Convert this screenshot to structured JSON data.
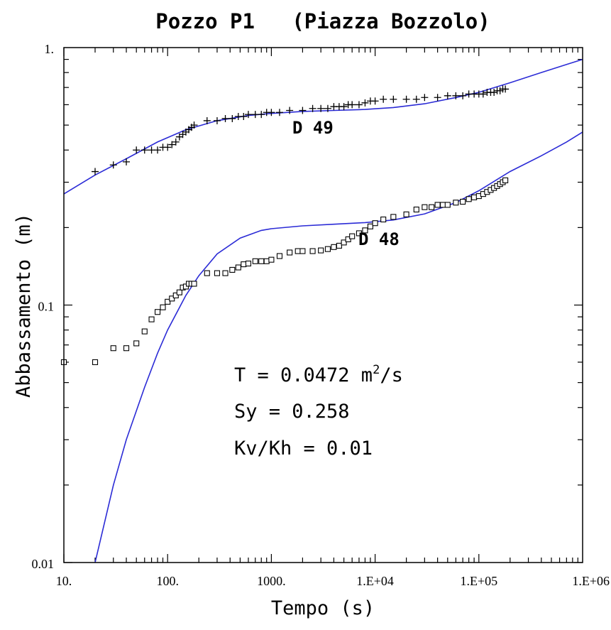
{
  "chart_data": {
    "type": "scatter",
    "title": "Pozzo P1   (Piazza Bozzolo)",
    "xlabel": "Tempo (s)",
    "ylabel": "Abbassamento (m)",
    "x_scale": "log",
    "y_scale": "log",
    "xlim": [
      10,
      1000000
    ],
    "ylim": [
      0.01,
      1
    ],
    "grid": false,
    "x_tick_labels": [
      {
        "value": 10,
        "label": "10."
      },
      {
        "value": 100,
        "label": "100."
      },
      {
        "value": 1000,
        "label": "1000."
      },
      {
        "value": 10000,
        "label": "1.E+04"
      },
      {
        "value": 100000,
        "label": "1.E+05"
      },
      {
        "value": 1000000,
        "label": "1.E+06"
      }
    ],
    "y_tick_labels": [
      {
        "value": 0.01,
        "label": "0.01"
      },
      {
        "value": 0.1,
        "label": "0.1"
      },
      {
        "value": 1,
        "label": "1."
      }
    ],
    "annotations": {
      "transmissivity": "T = 0.0472 m²/s",
      "specific_yield": "Sy = 0.258",
      "anisotropy": "Kv/Kh = 0.01"
    },
    "colors": {
      "fit_curve": "#2b2bd6",
      "data_points": "#000000"
    },
    "series": [
      {
        "name": "D 49",
        "marker": "plus",
        "x": [
          20,
          30,
          40,
          50,
          60,
          70,
          80,
          90,
          100,
          110,
          120,
          130,
          140,
          150,
          160,
          170,
          180,
          240,
          300,
          360,
          420,
          480,
          540,
          600,
          700,
          800,
          900,
          1000,
          1200,
          1500,
          2000,
          2500,
          3000,
          3500,
          4000,
          4500,
          5000,
          5500,
          6000,
          7000,
          8000,
          9000,
          10000,
          12000,
          15000,
          20000,
          25000,
          30000,
          40000,
          50000,
          60000,
          70000,
          80000,
          90000,
          100000,
          110000,
          120000,
          130000,
          140000,
          150000,
          160000,
          170000,
          180000
        ],
        "y": [
          0.33,
          0.35,
          0.36,
          0.4,
          0.4,
          0.4,
          0.4,
          0.41,
          0.41,
          0.42,
          0.43,
          0.45,
          0.46,
          0.47,
          0.48,
          0.49,
          0.5,
          0.52,
          0.52,
          0.53,
          0.53,
          0.54,
          0.54,
          0.55,
          0.55,
          0.55,
          0.56,
          0.56,
          0.56,
          0.57,
          0.57,
          0.58,
          0.58,
          0.58,
          0.59,
          0.59,
          0.59,
          0.6,
          0.6,
          0.6,
          0.61,
          0.62,
          0.62,
          0.63,
          0.63,
          0.63,
          0.63,
          0.64,
          0.64,
          0.65,
          0.65,
          0.65,
          0.66,
          0.66,
          0.66,
          0.66,
          0.67,
          0.67,
          0.67,
          0.68,
          0.68,
          0.69,
          0.69
        ],
        "fit": {
          "x": [
            10,
            20,
            40,
            80,
            150,
            300,
            600,
            1000,
            2000,
            4000,
            8000,
            15000,
            30000,
            60000,
            100000,
            200000,
            400000,
            700000,
            1000000
          ],
          "y": [
            0.27,
            0.32,
            0.37,
            0.43,
            0.48,
            0.52,
            0.545,
            0.555,
            0.565,
            0.57,
            0.575,
            0.585,
            0.605,
            0.64,
            0.67,
            0.73,
            0.8,
            0.86,
            0.9
          ]
        }
      },
      {
        "name": "D 48",
        "marker": "square",
        "x": [
          10,
          20,
          30,
          40,
          50,
          60,
          70,
          80,
          90,
          100,
          110,
          120,
          130,
          140,
          150,
          160,
          170,
          180,
          240,
          300,
          360,
          420,
          480,
          540,
          600,
          700,
          800,
          900,
          1000,
          1200,
          1500,
          1800,
          2000,
          2500,
          3000,
          3500,
          4000,
          4500,
          5000,
          5500,
          6000,
          7000,
          8000,
          9000,
          10000,
          12000,
          15000,
          20000,
          25000,
          30000,
          35000,
          40000,
          45000,
          50000,
          60000,
          70000,
          80000,
          90000,
          100000,
          110000,
          120000,
          130000,
          140000,
          150000,
          160000,
          170000,
          180000
        ],
        "y": [
          0.06,
          0.06,
          0.068,
          0.068,
          0.071,
          0.079,
          0.088,
          0.094,
          0.098,
          0.103,
          0.106,
          0.109,
          0.112,
          0.117,
          0.118,
          0.121,
          0.121,
          0.121,
          0.133,
          0.133,
          0.133,
          0.137,
          0.14,
          0.144,
          0.145,
          0.148,
          0.148,
          0.148,
          0.15,
          0.155,
          0.16,
          0.162,
          0.162,
          0.162,
          0.163,
          0.165,
          0.168,
          0.17,
          0.175,
          0.18,
          0.185,
          0.19,
          0.195,
          0.202,
          0.208,
          0.215,
          0.22,
          0.225,
          0.235,
          0.24,
          0.24,
          0.245,
          0.245,
          0.245,
          0.25,
          0.252,
          0.258,
          0.262,
          0.265,
          0.27,
          0.275,
          0.28,
          0.285,
          0.29,
          0.295,
          0.3,
          0.305
        ],
        "fit": {
          "x": [
            20,
            30,
            40,
            60,
            80,
            100,
            150,
            200,
            300,
            500,
            800,
            1000,
            2000,
            4000,
            8000,
            15000,
            30000,
            60000,
            100000,
            200000,
            400000,
            700000,
            1000000
          ],
          "y": [
            0.01,
            0.02,
            0.03,
            0.048,
            0.065,
            0.08,
            0.109,
            0.13,
            0.158,
            0.182,
            0.195,
            0.198,
            0.203,
            0.206,
            0.209,
            0.214,
            0.226,
            0.25,
            0.278,
            0.33,
            0.38,
            0.43,
            0.47
          ]
        }
      }
    ]
  }
}
